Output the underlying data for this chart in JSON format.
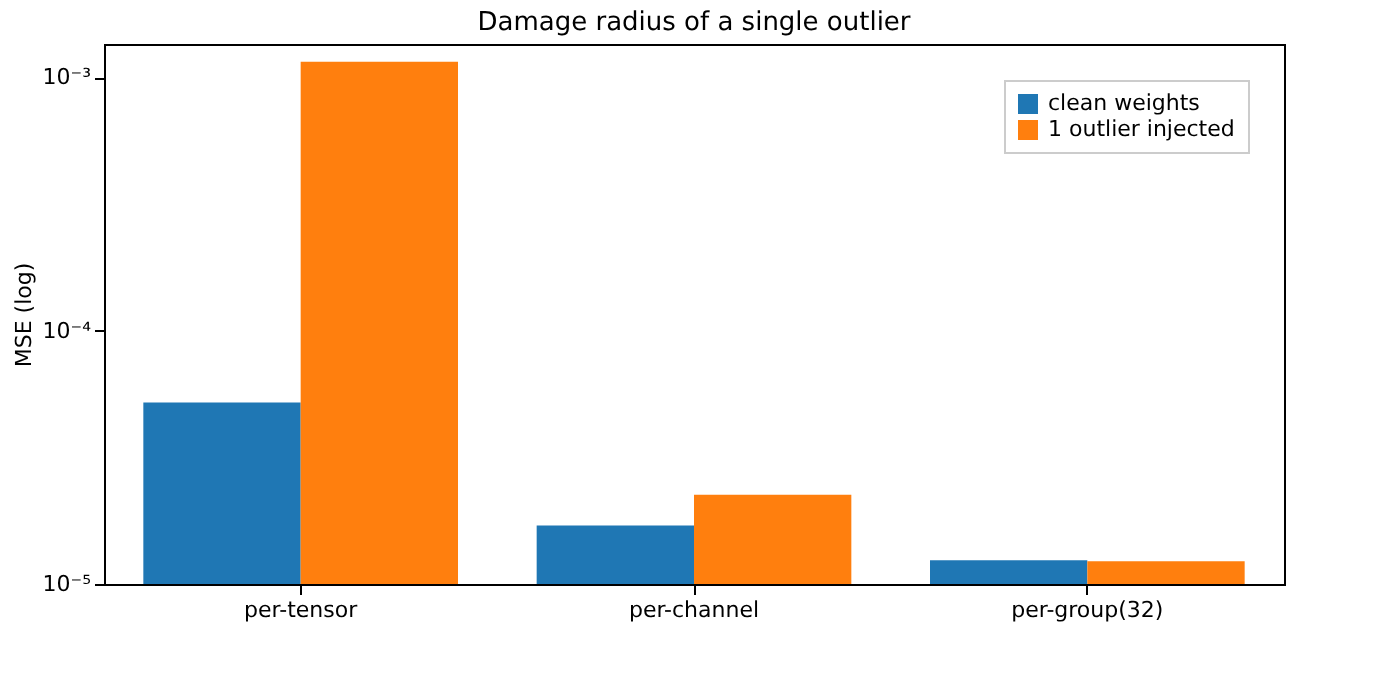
{
  "chart_data": {
    "type": "bar",
    "title": "Damage radius of a single outlier",
    "ylabel": "MSE (log)",
    "categories": [
      "per-tensor",
      "per-channel",
      "per-group(32)"
    ],
    "series": [
      {
        "name": "clean weights",
        "color": "#1f77b4",
        "values": [
          5.2e-05,
          1.7e-05,
          1.24e-05
        ]
      },
      {
        "name": "1 outlier injected",
        "color": "#ff7f0e",
        "values": [
          0.00115,
          2.25e-05,
          1.23e-05
        ]
      }
    ],
    "log": true,
    "ylim": [
      1e-05,
      0.00135
    ],
    "yticks": [
      {
        "value": 1e-05,
        "label": "10⁻⁵"
      },
      {
        "value": 0.0001,
        "label": "10⁻⁴"
      },
      {
        "value": 0.001,
        "label": "10⁻³"
      }
    ],
    "grid": false,
    "legend": "top right"
  }
}
